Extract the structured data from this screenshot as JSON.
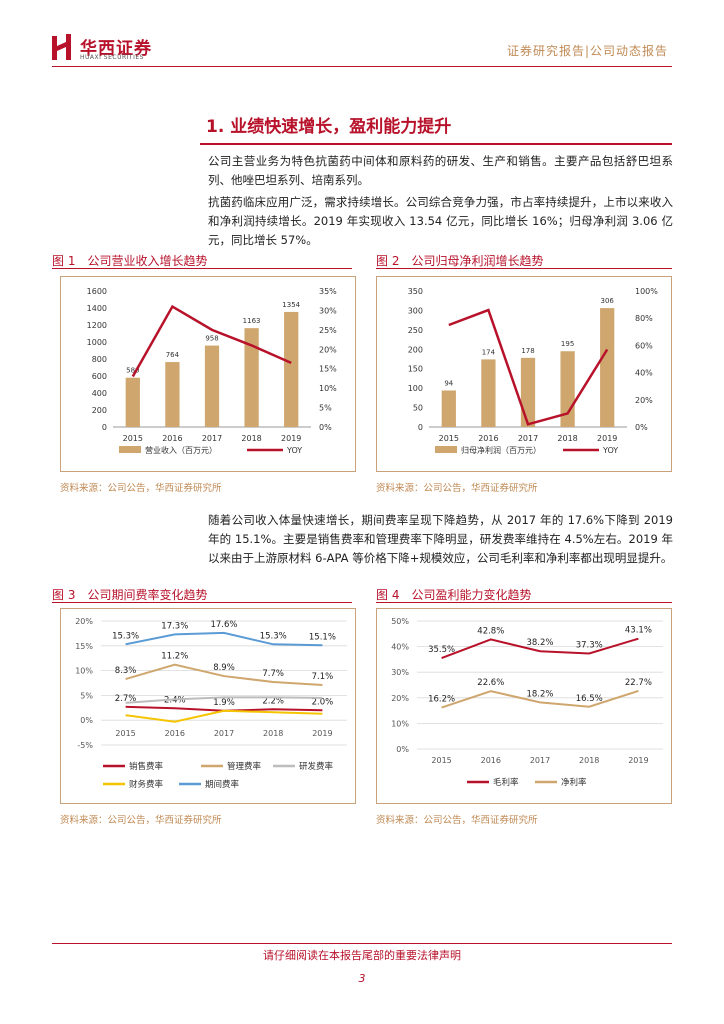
{
  "header": {
    "company_cn": "华西证券",
    "company_en": "HUAXI SECURITIES",
    "report_type": "证券研究报告|公司动态报告"
  },
  "section": {
    "title": "1. 业绩快速增长，盈利能力提升"
  },
  "paragraphs": {
    "p1": "公司主营业务为特色抗菌药中间体和原料药的研发、生产和销售。主要产品包括舒巴坦系列、他唑巴坦系列、培南系列。",
    "p2": "抗菌药临床应用广泛，需求持续增长。公司综合竞争力强，市占率持续提升，上市以来收入和净利润持续增长。2019 年实现收入 13.54 亿元，同比增长 16%；归母净利润 3.06 亿元，同比增长 57%。",
    "p3": "随着公司收入体量快速增长，期间费率呈现下降趋势，从 2017 年的 17.6%下降到 2019 年的 15.1%。主要是销售费率和管理费率下降明显，研发费率维持在 4.5%左右。2019 年以来由于上游原材料 6-APA 等价格下降+规模效应，公司毛利率和净利率都出现明显提升。"
  },
  "figures": {
    "fig1_title": "图 1　公司营业收入增长趋势",
    "fig2_title": "图 2　公司归母净利润增长趋势",
    "fig3_title": "图 3　公司期间费率变化趋势",
    "fig4_title": "图 4　公司盈利能力变化趋势",
    "source": "资料来源：公司公告，华西证券研究所"
  },
  "footer": {
    "disclaimer": "请仔细阅读在本报告尾部的重要法律声明",
    "page_number": "3"
  },
  "colors": {
    "brand_red": "#b8122b",
    "bar_gold": "#cfa66e",
    "series_gray": "#bdbdbd",
    "series_yellow": "#f5c400",
    "series_blue": "#5b9bd5"
  },
  "chart_data": [
    {
      "id": "fig1",
      "type": "bar",
      "categories": [
        "2015",
        "2016",
        "2017",
        "2018",
        "2019"
      ],
      "series": [
        {
          "name": "营业收入（百万元）",
          "type": "bar",
          "axis": "left",
          "values": [
            580,
            764,
            958,
            1163,
            1354
          ],
          "labels": [
            "580",
            "764",
            "958",
            "1163",
            "1354"
          ]
        },
        {
          "name": "YOY",
          "type": "line",
          "axis": "right",
          "values": [
            0.13,
            0.31,
            0.25,
            0.21,
            0.165
          ]
        }
      ],
      "left_axis": {
        "min": 0,
        "max": 1600,
        "ticks": [
          0,
          200,
          400,
          600,
          800,
          1000,
          1200,
          1400,
          1600
        ],
        "tick_labels": [
          "0",
          "200",
          "400",
          "600",
          "800",
          "1000",
          "1200",
          "1400",
          "1600"
        ]
      },
      "right_axis": {
        "min": 0,
        "max": 0.35,
        "ticks": [
          0,
          0.05,
          0.1,
          0.15,
          0.2,
          0.25,
          0.3,
          0.35
        ],
        "tick_labels": [
          "0%",
          "5%",
          "10%",
          "15%",
          "20%",
          "25%",
          "30%",
          "35%"
        ]
      }
    },
    {
      "id": "fig2",
      "type": "bar",
      "categories": [
        "2015",
        "2016",
        "2017",
        "2018",
        "2019"
      ],
      "series": [
        {
          "name": "归母净利润（百万元）",
          "type": "bar",
          "axis": "left",
          "values": [
            94,
            174,
            178,
            195,
            306
          ],
          "labels": [
            "94",
            "174",
            "178",
            "195",
            "306"
          ]
        },
        {
          "name": "YOY",
          "type": "line",
          "axis": "right",
          "values": [
            0.75,
            0.86,
            0.02,
            0.1,
            0.57
          ]
        }
      ],
      "left_axis": {
        "min": 0,
        "max": 350,
        "ticks": [
          0,
          50,
          100,
          150,
          200,
          250,
          300,
          350
        ],
        "tick_labels": [
          "0",
          "50",
          "100",
          "150",
          "200",
          "250",
          "300",
          "350"
        ]
      },
      "right_axis": {
        "min": 0,
        "max": 1.0,
        "ticks": [
          0,
          0.2,
          0.4,
          0.6,
          0.8,
          1.0
        ],
        "tick_labels": [
          "0%",
          "20%",
          "40%",
          "60%",
          "80%",
          "100%"
        ]
      }
    },
    {
      "id": "fig3",
      "type": "line",
      "categories": [
        "2015",
        "2016",
        "2017",
        "2018",
        "2019"
      ],
      "series": [
        {
          "name": "销售费率",
          "color": "#b8122b",
          "values": [
            2.7,
            2.4,
            1.9,
            2.2,
            2.0
          ],
          "labels": [
            "2.7%",
            "2.4%",
            "1.9%",
            "2.2%",
            "2.0%"
          ]
        },
        {
          "name": "管理费率",
          "color": "#cfa66e",
          "values": [
            8.3,
            11.2,
            8.9,
            7.7,
            7.1
          ],
          "labels": [
            "8.3%",
            "11.2%",
            "8.9%",
            "7.7%",
            "7.1%"
          ]
        },
        {
          "name": "研发费率",
          "color": "#bdbdbd",
          "values": [
            3.5,
            4.2,
            4.6,
            4.6,
            4.5
          ],
          "labels": []
        },
        {
          "name": "财务费率",
          "color": "#f5c400",
          "values": [
            1.0,
            -0.3,
            1.9,
            1.6,
            1.3
          ],
          "labels": []
        },
        {
          "name": "期间费率",
          "color": "#5b9bd5",
          "values": [
            15.3,
            17.3,
            17.6,
            15.3,
            15.1
          ],
          "labels": [
            "15.3%",
            "17.3%",
            "17.6%",
            "15.3%",
            "15.1%"
          ]
        }
      ],
      "y_axis": {
        "min": -5,
        "max": 20,
        "ticks": [
          -5,
          0,
          5,
          10,
          15,
          20
        ],
        "tick_labels": [
          "-5%",
          "0%",
          "5%",
          "10%",
          "15%",
          "20%"
        ]
      }
    },
    {
      "id": "fig4",
      "type": "line",
      "categories": [
        "2015",
        "2016",
        "2017",
        "2018",
        "2019"
      ],
      "series": [
        {
          "name": "毛利率",
          "color": "#b8122b",
          "values": [
            35.5,
            42.8,
            38.2,
            37.3,
            43.1
          ],
          "labels": [
            "35.5%",
            "42.8%",
            "38.2%",
            "37.3%",
            "43.1%"
          ]
        },
        {
          "name": "净利率",
          "color": "#cfa66e",
          "values": [
            16.2,
            22.6,
            18.2,
            16.5,
            22.7
          ],
          "labels": [
            "16.2%",
            "22.6%",
            "18.2%",
            "16.5%",
            "22.7%"
          ]
        }
      ],
      "y_axis": {
        "min": 0,
        "max": 50,
        "ticks": [
          0,
          10,
          20,
          30,
          40,
          50
        ],
        "tick_labels": [
          "0%",
          "10%",
          "20%",
          "30%",
          "40%",
          "50%"
        ]
      }
    }
  ]
}
